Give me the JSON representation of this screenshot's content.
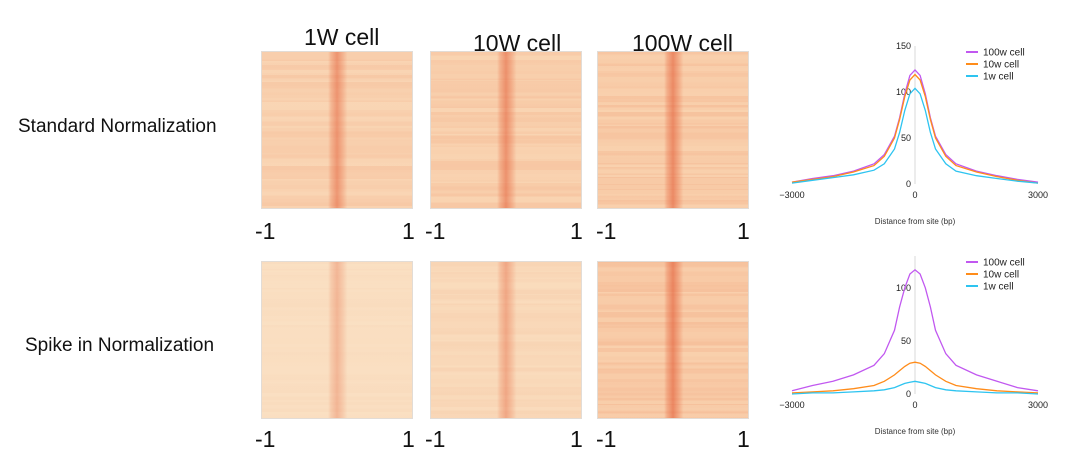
{
  "columns": [
    "1W cell",
    "10W cell",
    "100W cell"
  ],
  "rows": [
    "Standard Normalization",
    "Spike in Normalization"
  ],
  "heatmap_ticks": [
    "-1",
    "1"
  ],
  "chart_data": [
    {
      "type": "line",
      "panel": "top",
      "xlabel": "Distance from site (bp)",
      "xlim": [
        -3000,
        3000
      ],
      "ylim": [
        0,
        150
      ],
      "xticks": [
        -3000,
        0,
        3000
      ],
      "xtick_labels": [
        "−3000",
        "0",
        "3000"
      ],
      "yticks": [
        0,
        50,
        100,
        150
      ],
      "legend_position": "top-right",
      "x": [
        -3000,
        -2500,
        -2000,
        -1500,
        -1000,
        -750,
        -500,
        -375,
        -250,
        -125,
        0,
        125,
        250,
        375,
        500,
        750,
        1000,
        1500,
        2000,
        2500,
        3000
      ],
      "series": [
        {
          "name": "100w cell",
          "color": "#c158f0",
          "values": [
            2,
            6,
            9,
            14,
            22,
            32,
            52,
            72,
            98,
            118,
            124,
            118,
            98,
            72,
            52,
            32,
            22,
            14,
            9,
            5,
            2
          ]
        },
        {
          "name": "10w cell",
          "color": "#ff8c1a",
          "values": [
            2,
            5,
            8,
            13,
            20,
            30,
            50,
            70,
            95,
            113,
            119,
            113,
            95,
            70,
            50,
            30,
            20,
            13,
            8,
            4,
            1
          ]
        },
        {
          "name": "1w cell",
          "color": "#2ec4f0",
          "values": [
            1,
            4,
            7,
            10,
            15,
            22,
            38,
            56,
            80,
            98,
            104,
            98,
            80,
            56,
            38,
            22,
            14,
            9,
            6,
            3,
            1
          ]
        }
      ]
    },
    {
      "type": "line",
      "panel": "bottom",
      "xlabel": "Distance from site (bp)",
      "xlim": [
        -3000,
        3000
      ],
      "ylim": [
        0,
        130
      ],
      "xticks": [
        -3000,
        0,
        3000
      ],
      "xtick_labels": [
        "−3000",
        "0",
        "3000"
      ],
      "yticks": [
        0,
        50,
        100
      ],
      "legend_position": "top-right",
      "x": [
        -3000,
        -2500,
        -2000,
        -1500,
        -1000,
        -750,
        -500,
        -375,
        -250,
        -125,
        0,
        125,
        250,
        375,
        500,
        750,
        1000,
        1500,
        2000,
        2500,
        3000
      ],
      "series": [
        {
          "name": "100w cell",
          "color": "#c158f0",
          "values": [
            3,
            8,
            12,
            18,
            27,
            38,
            60,
            82,
            100,
            113,
            117,
            113,
            100,
            82,
            60,
            38,
            27,
            18,
            12,
            6,
            3
          ]
        },
        {
          "name": "10w cell",
          "color": "#ff8c1a",
          "values": [
            1,
            2,
            3,
            5,
            8,
            12,
            18,
            22,
            26,
            29,
            30,
            29,
            26,
            22,
            18,
            12,
            8,
            5,
            3,
            2,
            1
          ]
        },
        {
          "name": "1w cell",
          "color": "#2ec4f0",
          "values": [
            0,
            1,
            1,
            2,
            3,
            4,
            6,
            8,
            10,
            11,
            12,
            11,
            10,
            8,
            6,
            4,
            3,
            2,
            1,
            1,
            0
          ]
        }
      ]
    }
  ]
}
